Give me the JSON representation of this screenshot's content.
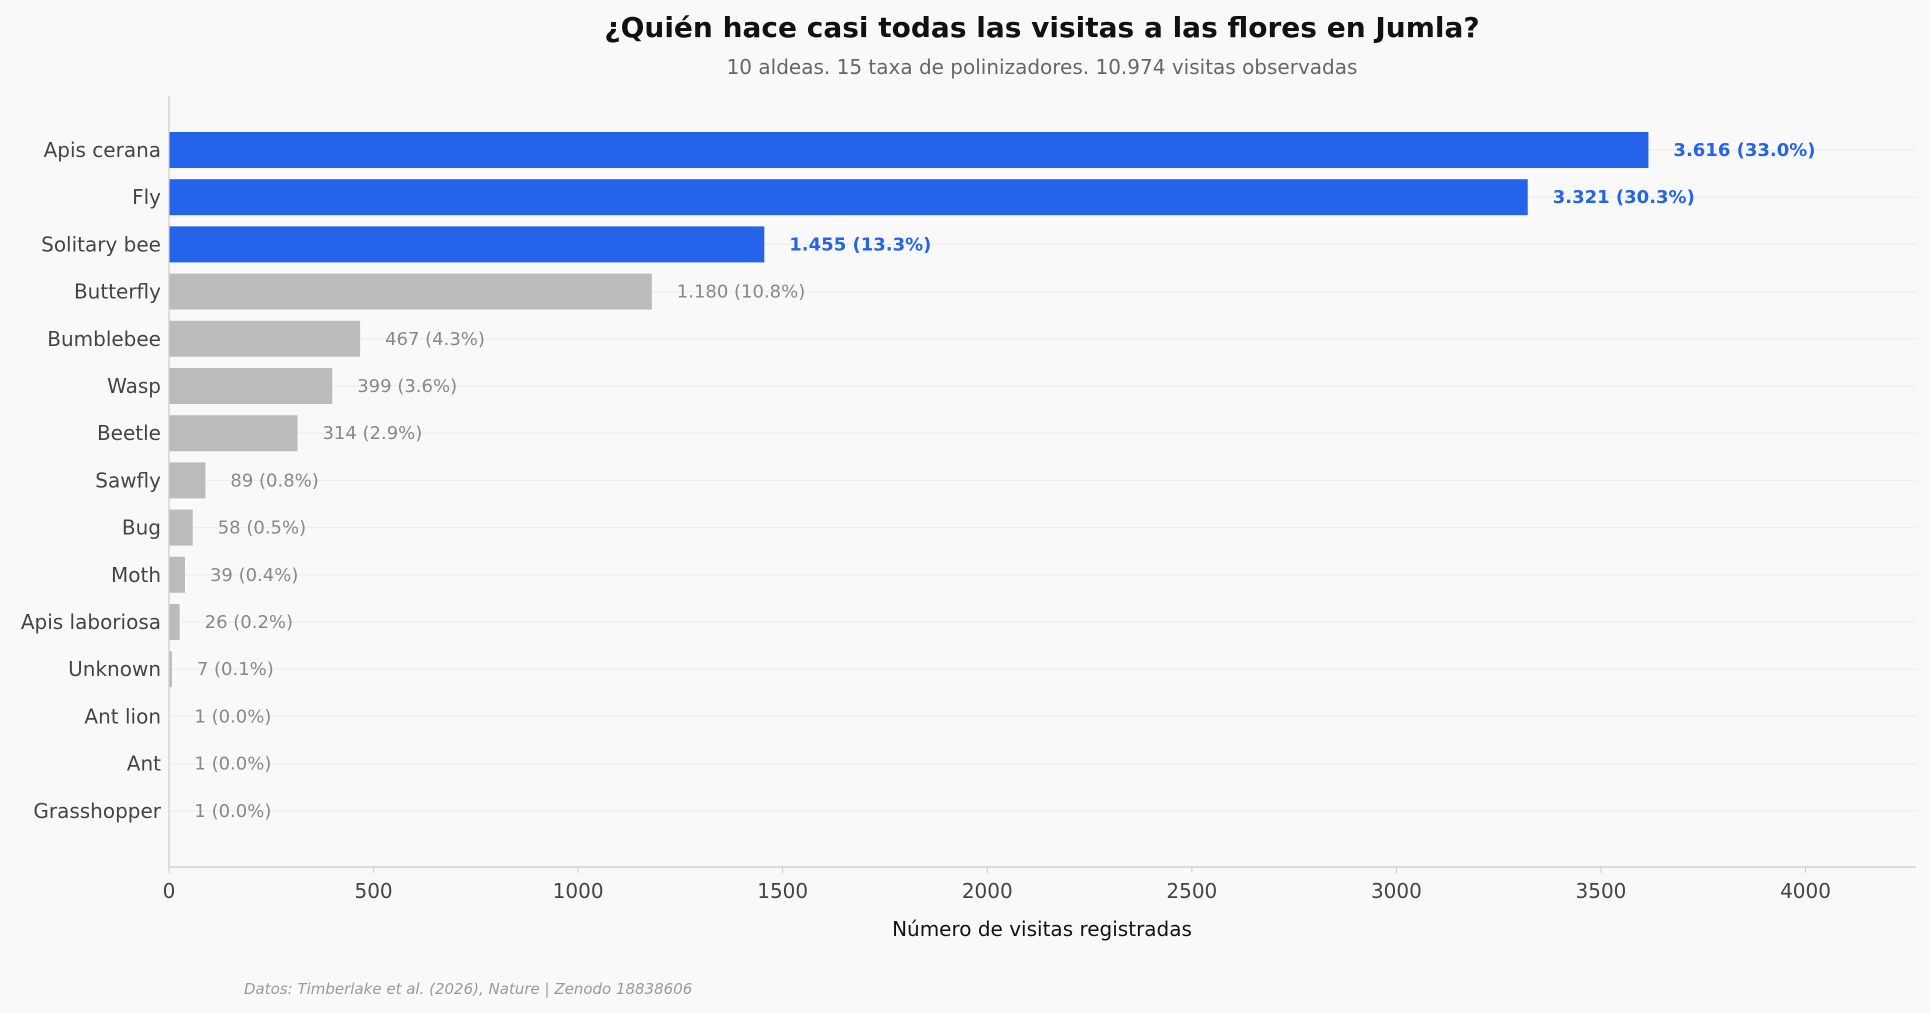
{
  "chart_data": {
    "type": "bar",
    "orientation": "horizontal",
    "title": "¿Quién hace casi todas las visitas a las flores en Jumla?",
    "subtitle": "10 aldeas. 15 taxa de polinizadores. 10.974 visitas observadas",
    "xlabel": "Número de visitas registradas",
    "ylabel": "",
    "xlim": [
      0,
      4270
    ],
    "xticks": [
      0,
      500,
      1000,
      1500,
      2000,
      2500,
      3000,
      3500,
      4000
    ],
    "xtick_labels": [
      "0",
      "500",
      "1000",
      "1500",
      "2000",
      "2500",
      "3000",
      "3500",
      "4000"
    ],
    "grid": "horizontal lines at each category",
    "categories": [
      "Apis cerana",
      "Fly",
      "Solitary bee",
      "Butterfly",
      "Bumblebee",
      "Wasp",
      "Beetle",
      "Sawfly",
      "Bug",
      "Moth",
      "Apis laboriosa",
      "Unknown",
      "Ant lion",
      "Ant",
      "Grasshopper"
    ],
    "values": [
      3616,
      3321,
      1455,
      1180,
      467,
      399,
      314,
      89,
      58,
      39,
      26,
      7,
      1,
      1,
      1
    ],
    "value_labels": [
      "3.616  (33.0%)",
      "3.321  (30.3%)",
      "1.455  (13.3%)",
      "1.180  (10.8%)",
      "467  (4.3%)",
      "399  (3.6%)",
      "314  (2.9%)",
      "89  (0.8%)",
      "58  (0.5%)",
      "39  (0.4%)",
      "26  (0.2%)",
      "7  (0.1%)",
      "1  (0.0%)",
      "1  (0.0%)",
      "1  (0.0%)"
    ],
    "highlighted": [
      true,
      true,
      true,
      false,
      false,
      false,
      false,
      false,
      false,
      false,
      false,
      false,
      false,
      false,
      false
    ],
    "colors": {
      "highlight": "#2563eb",
      "other": "#bbbbbb",
      "highlight_label": "#2563eb",
      "other_label": "#888888",
      "background": "#f9f9f9"
    },
    "source": "Datos: Timberlake et al. (2026), Nature | Zenodo 18838606"
  }
}
